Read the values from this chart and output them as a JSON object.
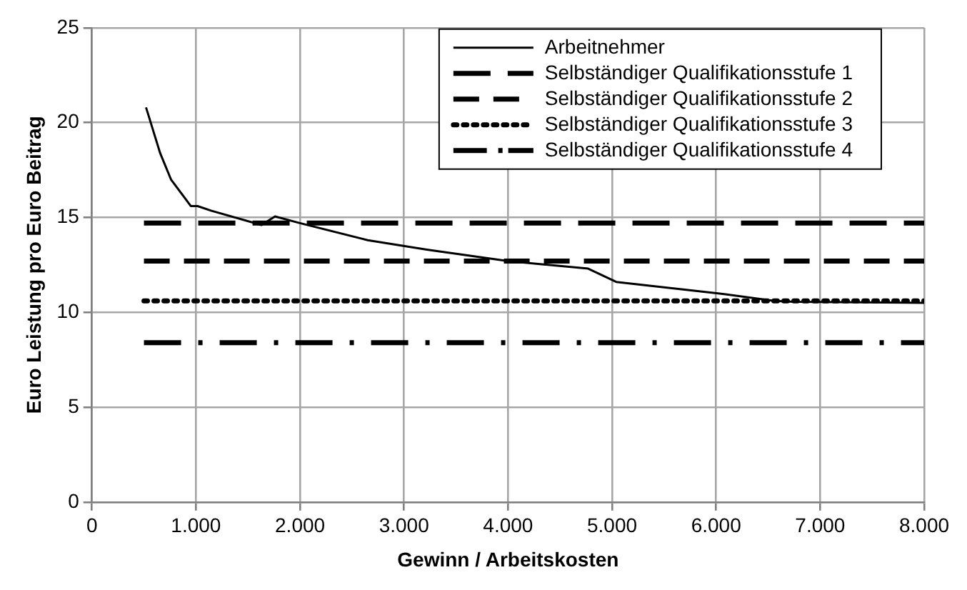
{
  "chart_data": {
    "type": "line",
    "xlabel": "Gewinn / Arbeitskosten",
    "ylabel": "Euro Leistung pro Euro Beitrag",
    "xlim": [
      0,
      8000
    ],
    "xticks": [
      0,
      {
        "value": 1000,
        "label": "1.000"
      },
      {
        "value": 2000,
        "label": "2.000"
      },
      {
        "value": 3000,
        "label": "3.000"
      },
      {
        "value": 4000,
        "label": "4.000"
      },
      {
        "value": 5000,
        "label": "5.000"
      },
      {
        "value": 6000,
        "label": "6.000"
      },
      {
        "value": 7000,
        "label": "7.000"
      },
      {
        "value": 8000,
        "label": "8.000"
      }
    ],
    "ylim": [
      0,
      25
    ],
    "yticks": [
      0,
      5,
      10,
      15,
      20,
      25
    ],
    "grid": true,
    "legend": "top right",
    "marker": "none",
    "series": [
      {
        "name": "Arbeitnehmer",
        "color": "#000000",
        "line_style": "solid",
        "x": [
          520,
          655,
          760,
          950,
          1015,
          1150,
          1630,
          1760,
          2000,
          2650,
          3220,
          4000,
          4770,
          5040,
          6020,
          6560,
          6750,
          8000
        ],
        "values": [
          20.8,
          18.4,
          17.0,
          15.6,
          15.6,
          15.35,
          14.6,
          15.05,
          14.7,
          13.8,
          13.3,
          12.7,
          12.3,
          11.6,
          11.0,
          10.6,
          10.55,
          10.5
        ]
      },
      {
        "name": "Selbständiger Qualifikationsstufe 1",
        "color": "#000000",
        "line_style": "dashed",
        "x": [
          500,
          8000
        ],
        "values": [
          14.7,
          14.7
        ]
      },
      {
        "name": "Selbständiger Qualifikationsstufe 2",
        "color": "#000000",
        "line_style": "dashed",
        "x": [
          500,
          8000
        ],
        "values": [
          12.7,
          12.7
        ]
      },
      {
        "name": "Selbständiger Qualifikationsstufe 3",
        "color": "#000000",
        "line_style": "dotted",
        "x": [
          500,
          8000
        ],
        "values": [
          10.6,
          10.6
        ]
      },
      {
        "name": "Selbständiger Qualifikationsstufe 4",
        "color": "#000000",
        "line_style": "dashed",
        "x": [
          500,
          8000
        ],
        "values": [
          8.4,
          8.4
        ]
      }
    ]
  }
}
